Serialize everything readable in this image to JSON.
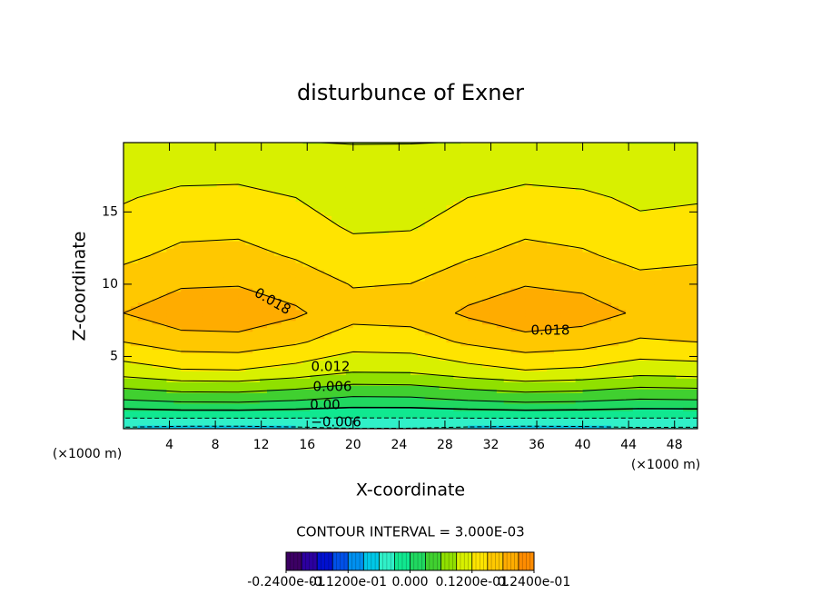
{
  "chart_data": {
    "type": "contour",
    "title": "disturbunce of Exner",
    "xlabel": "X-coordinate",
    "ylabel": "Z-coordinate",
    "x_unit": "(×1000 m)",
    "y_unit": "(×1000 m)",
    "contour_interval": "CONTOUR INTERVAL = 3.000E-03",
    "xlim": [
      0,
      50
    ],
    "ylim": [
      0,
      19.8
    ],
    "xticks": [
      4,
      8,
      12,
      16,
      20,
      24,
      28,
      32,
      36,
      40,
      44,
      48
    ],
    "yticks": [
      5,
      10,
      15
    ],
    "x": [
      0,
      5,
      10,
      15,
      20,
      25,
      30,
      35,
      40,
      45,
      50
    ],
    "y": [
      0,
      2,
      4,
      6,
      8,
      10,
      12,
      14,
      16,
      18,
      20
    ],
    "z": [
      [
        -0.0065,
        -0.0069,
        -0.00695,
        -0.0066,
        -0.0061,
        -0.00615,
        -0.0066,
        -0.00695,
        -0.0068,
        -0.0064,
        -0.0065
      ],
      [
        0.003,
        0.0038,
        0.0039,
        0.0032,
        0.0022,
        0.0023,
        0.0032,
        0.0039,
        0.0036,
        0.0028,
        0.003
      ],
      [
        0.0105,
        0.0117,
        0.01185,
        0.0108,
        0.0093,
        0.00945,
        0.0108,
        0.01185,
        0.0114,
        0.0102,
        0.0105
      ],
      [
        0.015,
        0.0166,
        0.0168,
        0.0154,
        0.0134,
        0.0136,
        0.0154,
        0.0168,
        0.0162,
        0.0146,
        0.015
      ],
      [
        0.018,
        0.02,
        0.02025,
        0.0185,
        0.016,
        0.01625,
        0.0185,
        0.02025,
        0.0195,
        0.0175,
        0.018
      ],
      [
        0.01625,
        0.01765,
        0.01783,
        0.0166,
        0.01485,
        0.01503,
        0.0166,
        0.01783,
        0.0173,
        0.0159,
        0.01625
      ],
      [
        0.0144,
        0.01568,
        0.01584,
        0.01472,
        0.01312,
        0.01328,
        0.01472,
        0.01584,
        0.01536,
        0.01408,
        0.0144
      ],
      [
        0.0129,
        0.01418,
        0.01434,
        0.01322,
        0.01162,
        0.01178,
        0.01322,
        0.01434,
        0.01386,
        0.01258,
        0.0129
      ],
      [
        0.01175,
        0.01275,
        0.01288,
        0.012,
        0.01075,
        0.01088,
        0.012,
        0.01288,
        0.0125,
        0.0115,
        0.01175
      ],
      [
        0.0104,
        0.01088,
        0.01094,
        0.01052,
        0.00992,
        0.00998,
        0.01052,
        0.01094,
        0.01076,
        0.01028,
        0.0104
      ],
      [
        0.0089,
        0.00898,
        0.00899,
        0.00892,
        0.00882,
        0.00883,
        0.00892,
        0.00899,
        0.00896,
        0.00888,
        0.0089
      ]
    ],
    "levels": [
      -0.024,
      -0.021,
      -0.018,
      -0.015,
      -0.012,
      -0.009,
      -0.006,
      -0.003,
      0,
      0.003,
      0.006,
      0.009,
      0.012,
      0.015,
      0.018,
      0.021,
      0.024
    ],
    "colors": [
      "#3c0064",
      "#2c00a0",
      "#0010d0",
      "#0050e8",
      "#0090f0",
      "#00c8e8",
      "#30f0c8",
      "#10e890",
      "#20d860",
      "#40d030",
      "#90e000",
      "#d8f000",
      "#ffe400",
      "#ffc800",
      "#ffac00",
      "#ff8c00"
    ],
    "colorbar_ticks": [
      {
        "value": -0.024,
        "label": "-0.2400e-01"
      },
      {
        "value": -0.012,
        "label": "-0.1200e-01"
      },
      {
        "value": 0,
        "label": "0.000"
      },
      {
        "value": 0.012,
        "label": "0.1200e-01"
      },
      {
        "value": 0.024,
        "label": "0.2400e-01"
      }
    ],
    "annotations": [
      "0.018",
      "0.018",
      "0.012",
      "0.006",
      "0.00",
      "−0.006"
    ]
  }
}
